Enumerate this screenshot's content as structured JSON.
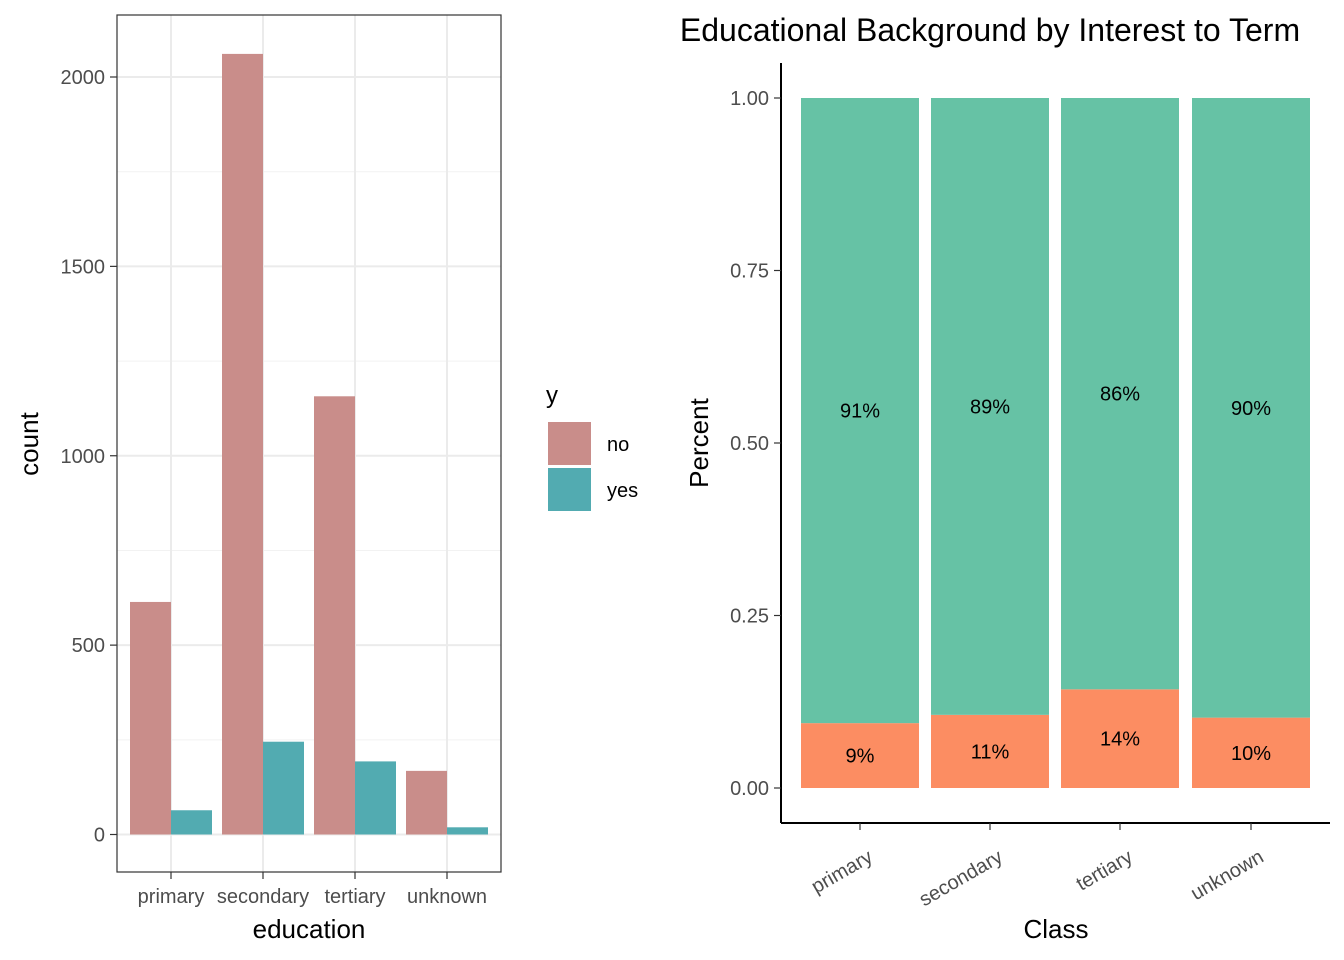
{
  "chart_data": [
    {
      "type": "bar",
      "title": "",
      "xlabel": "education",
      "ylabel": "count",
      "categories": [
        "primary",
        "secondary",
        "tertiary",
        "unknown"
      ],
      "series": [
        {
          "name": "no",
          "values": [
            614,
            2061,
            1157,
            168
          ]
        },
        {
          "name": "yes",
          "values": [
            64,
            245,
            193,
            19
          ]
        }
      ],
      "ylim": [
        0,
        2150
      ],
      "yticks": [
        0,
        500,
        1000,
        1500,
        2000
      ],
      "grid": true,
      "legend": {
        "title": "y",
        "entries": [
          "no",
          "yes"
        ],
        "placement": "right"
      },
      "colors": {
        "no": "#C98D8A",
        "yes": "#52ABB1"
      }
    },
    {
      "type": "bar",
      "stacked": "percent",
      "title": "Educational Background by Interest to Term",
      "xlabel": "Class",
      "ylabel": "Percent",
      "categories": [
        "primary",
        "secondary",
        "tertiary",
        "unknown"
      ],
      "series": [
        {
          "name": "yes",
          "values": [
            0.094,
            0.106,
            0.143,
            0.102
          ],
          "labels": [
            "9%",
            "11%",
            "14%",
            "10%"
          ]
        },
        {
          "name": "no",
          "values": [
            0.906,
            0.894,
            0.857,
            0.898
          ],
          "labels": [
            "91%",
            "89%",
            "86%",
            "90%"
          ]
        }
      ],
      "ylim": [
        0,
        1
      ],
      "yticks": [
        "0.00",
        "0.25",
        "0.50",
        "0.75",
        "1.00"
      ],
      "grid": false,
      "colors": {
        "no": "#66C2A5",
        "yes": "#FC8D62"
      }
    }
  ]
}
